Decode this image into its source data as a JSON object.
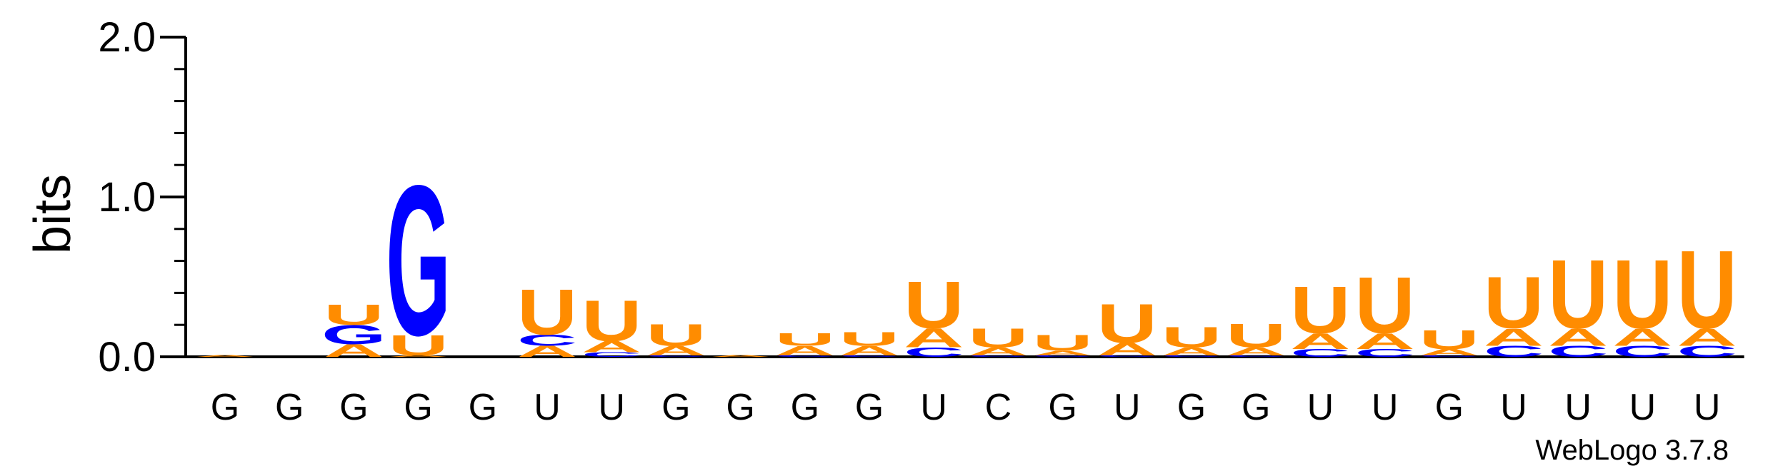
{
  "chart_data": {
    "type": "sequence-logo",
    "ylabel": "bits",
    "ylim": [
      0,
      2.0
    ],
    "yticks": [
      "0.0",
      "1.0",
      "2.0"
    ],
    "footer": "WebLogo 3.7.8",
    "colors": {
      "U": "#ff8c00",
      "G": "#0000ff",
      "A": "#ff8c00",
      "C": "#0000ff"
    },
    "positions": [
      "G",
      "G",
      "G",
      "G",
      "G",
      "U",
      "U",
      "G",
      "G",
      "G",
      "G",
      "U",
      "C",
      "G",
      "U",
      "G",
      "G",
      "U",
      "U",
      "G",
      "U",
      "U",
      "U",
      "U"
    ],
    "stacks": [
      [
        {
          "letter": "A",
          "bits": 0.01
        }
      ],
      [],
      [
        {
          "letter": "A",
          "bits": 0.08
        },
        {
          "letter": "G",
          "bits": 0.12
        },
        {
          "letter": "U",
          "bits": 0.13
        }
      ],
      [
        {
          "letter": "A",
          "bits": 0.01
        },
        {
          "letter": "U",
          "bits": 0.13
        },
        {
          "letter": "G",
          "bits": 0.96
        }
      ],
      [],
      [
        {
          "letter": "A",
          "bits": 0.07
        },
        {
          "letter": "C",
          "bits": 0.07
        },
        {
          "letter": "U",
          "bits": 0.29
        }
      ],
      [
        {
          "letter": "C",
          "bits": 0.03
        },
        {
          "letter": "A",
          "bits": 0.07
        },
        {
          "letter": "U",
          "bits": 0.26
        }
      ],
      [
        {
          "letter": "C",
          "bits": 0.01
        },
        {
          "letter": "A",
          "bits": 0.06
        },
        {
          "letter": "U",
          "bits": 0.14
        }
      ],
      [
        {
          "letter": "A",
          "bits": 0.01
        }
      ],
      [
        {
          "letter": "C",
          "bits": 0.01
        },
        {
          "letter": "A",
          "bits": 0.06
        },
        {
          "letter": "U",
          "bits": 0.08
        }
      ],
      [
        {
          "letter": "C",
          "bits": 0.01
        },
        {
          "letter": "A",
          "bits": 0.06
        },
        {
          "letter": "U",
          "bits": 0.09
        }
      ],
      [
        {
          "letter": "C",
          "bits": 0.06
        },
        {
          "letter": "A",
          "bits": 0.12
        },
        {
          "letter": "U",
          "bits": 0.3
        }
      ],
      [
        {
          "letter": "C",
          "bits": 0.01
        },
        {
          "letter": "A",
          "bits": 0.05
        },
        {
          "letter": "U",
          "bits": 0.12
        }
      ],
      [
        {
          "letter": "C",
          "bits": 0.01
        },
        {
          "letter": "A",
          "bits": 0.03
        },
        {
          "letter": "U",
          "bits": 0.1
        }
      ],
      [
        {
          "letter": "C",
          "bits": 0.01
        },
        {
          "letter": "A",
          "bits": 0.08
        },
        {
          "letter": "U",
          "bits": 0.25
        }
      ],
      [
        {
          "letter": "C",
          "bits": 0.01
        },
        {
          "letter": "A",
          "bits": 0.05
        },
        {
          "letter": "U",
          "bits": 0.13
        }
      ],
      [
        {
          "letter": "C",
          "bits": 0.01
        },
        {
          "letter": "A",
          "bits": 0.05
        },
        {
          "letter": "U",
          "bits": 0.15
        }
      ],
      [
        {
          "letter": "C",
          "bits": 0.05
        },
        {
          "letter": "A",
          "bits": 0.1
        },
        {
          "letter": "U",
          "bits": 0.3
        }
      ],
      [
        {
          "letter": "C",
          "bits": 0.05
        },
        {
          "letter": "A",
          "bits": 0.1
        },
        {
          "letter": "U",
          "bits": 0.36
        }
      ],
      [
        {
          "letter": "C",
          "bits": 0.01
        },
        {
          "letter": "A",
          "bits": 0.04
        },
        {
          "letter": "U",
          "bits": 0.12
        }
      ],
      [
        {
          "letter": "C",
          "bits": 0.07
        },
        {
          "letter": "A",
          "bits": 0.11
        },
        {
          "letter": "U",
          "bits": 0.33
        }
      ],
      [
        {
          "letter": "C",
          "bits": 0.07
        },
        {
          "letter": "A",
          "bits": 0.11
        },
        {
          "letter": "U",
          "bits": 0.44
        }
      ],
      [
        {
          "letter": "C",
          "bits": 0.07
        },
        {
          "letter": "A",
          "bits": 0.11
        },
        {
          "letter": "U",
          "bits": 0.44
        }
      ],
      [
        {
          "letter": "C",
          "bits": 0.07
        },
        {
          "letter": "A",
          "bits": 0.11
        },
        {
          "letter": "U",
          "bits": 0.5
        }
      ]
    ]
  }
}
